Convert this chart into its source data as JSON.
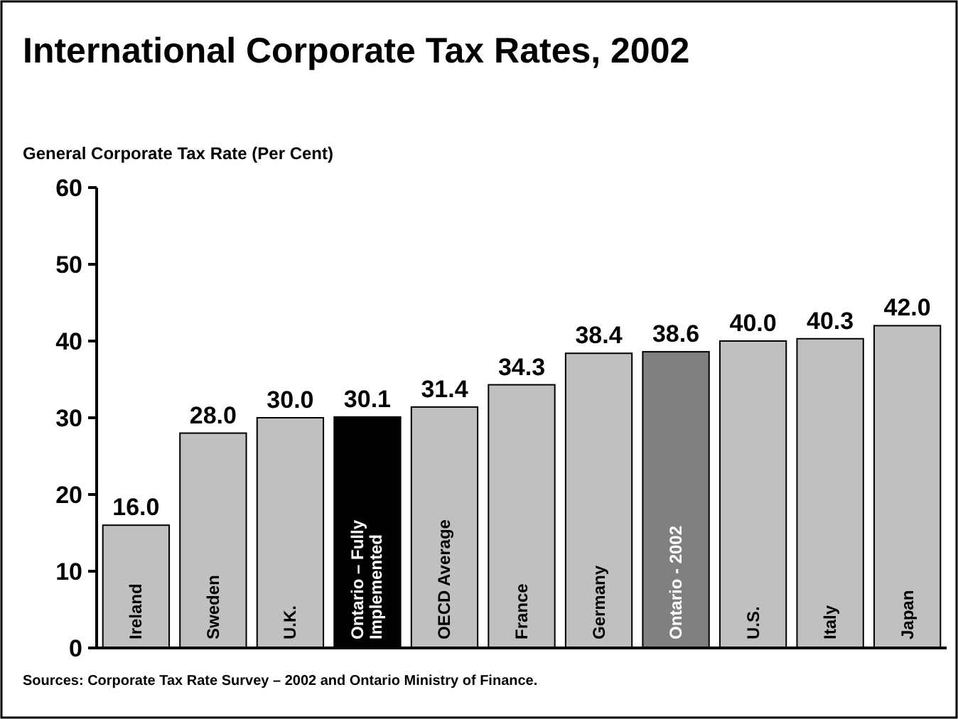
{
  "chart_data": {
    "type": "bar",
    "title": "International Corporate Tax Rates, 2002",
    "ylabel": "General Corporate Tax Rate (Per Cent)",
    "categories": [
      "Ireland",
      "Sweden",
      "U.K.",
      "Ontario – Fully Implemented",
      "OECD Average",
      "France",
      "Germany",
      "Ontario - 2002",
      "U.S.",
      "Italy",
      "Japan"
    ],
    "values": [
      16.0,
      28.0,
      30.0,
      30.1,
      31.4,
      34.3,
      38.4,
      38.6,
      40.0,
      40.3,
      42.0
    ],
    "colors": [
      "#c0c0c0",
      "#c0c0c0",
      "#c0c0c0",
      "#000000",
      "#c0c0c0",
      "#c0c0c0",
      "#c0c0c0",
      "#808080",
      "#c0c0c0",
      "#c0c0c0",
      "#c0c0c0"
    ],
    "value_labels": [
      "16.0",
      "28.0",
      "30.0",
      "30.1",
      "31.4",
      "34.3",
      "38.4",
      "38.6",
      "40.0",
      "40.3",
      "42.0"
    ],
    "ylim": [
      0,
      60
    ],
    "yticks": [
      0,
      10,
      20,
      30,
      40,
      50,
      60
    ],
    "annotations": [
      "Sources: Corporate Tax Rate Survey – 2002 and Ontario Ministry of Finance."
    ]
  }
}
